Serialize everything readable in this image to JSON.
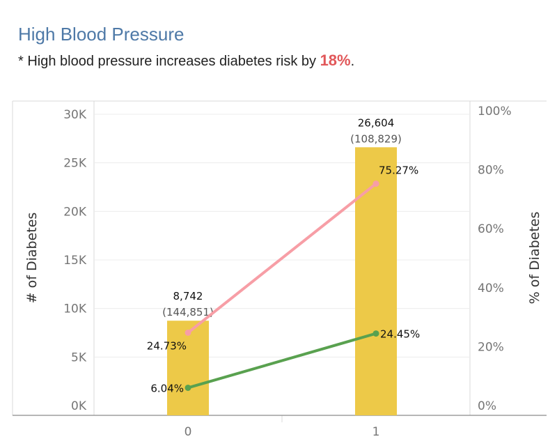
{
  "header": {
    "title": "High Blood Pressure",
    "subtitle_prefix": "* High blood pressure increases diabetes risk by ",
    "subtitle_highlight": "18%",
    "subtitle_suffix": "."
  },
  "colors": {
    "bar": "#edc948",
    "pink_line": "#f79ea6",
    "green_line": "#59a14f",
    "title": "#4e79a7",
    "highlight": "#e15759"
  },
  "chart_data": {
    "type": "bar",
    "categories": [
      "0",
      "1"
    ],
    "xlabel": "",
    "ylabel": "# of Diabetes",
    "y2label": "% of Diabetes",
    "ylim": [
      0,
      30000
    ],
    "y2lim": [
      0,
      1
    ],
    "yticks": [
      0,
      5000,
      10000,
      15000,
      20000,
      25000,
      30000
    ],
    "yticklabels": [
      "0K",
      "5K",
      "10K",
      "15K",
      "20K",
      "25K",
      "30K"
    ],
    "y2ticks": [
      0,
      0.2,
      0.4,
      0.6,
      0.8,
      1.0
    ],
    "y2ticklabels": [
      "0%",
      "20%",
      "40%",
      "60%",
      "80%",
      "100%"
    ],
    "grid": true,
    "bars": {
      "values": [
        8742,
        26604
      ],
      "labels": [
        "8,742",
        "26,604"
      ],
      "sublabels": [
        "(144,851)",
        "(108,829)"
      ]
    },
    "lines": [
      {
        "values": [
          0.2473,
          0.7527
        ],
        "labels": [
          "24.73%",
          "75.27%"
        ],
        "color": "#f79ea6"
      },
      {
        "values": [
          0.0604,
          0.2445
        ],
        "labels": [
          "6.04%",
          "24.45%"
        ],
        "color": "#59a14f"
      }
    ]
  }
}
